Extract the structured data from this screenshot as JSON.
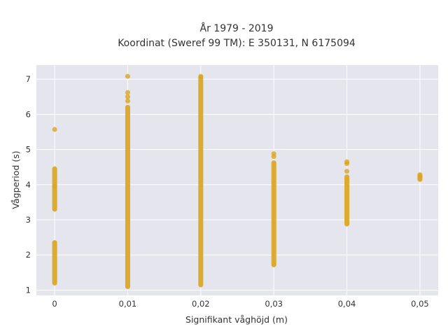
{
  "chart_data": {
    "type": "scatter",
    "title_line1": "År 1979 - 2019",
    "title_line2": "Koordinat (Sweref 99 TM): E 350131, N 6175094",
    "xlabel": "Signifikant våghöjd (m)",
    "ylabel": "Vågperiod (s)",
    "xlim": [
      -0.0025,
      0.0525
    ],
    "ylim": [
      0.85,
      7.4
    ],
    "x_ticks": [
      0,
      0.01,
      0.02,
      0.03,
      0.04,
      0.05
    ],
    "x_tick_labels": [
      "0",
      "0,01",
      "0,02",
      "0,03",
      "0,04",
      "0,05"
    ],
    "y_ticks": [
      1,
      2,
      3,
      4,
      5,
      6,
      7
    ],
    "y_tick_labels": [
      "1",
      "2",
      "3",
      "4",
      "5",
      "6",
      "7"
    ],
    "grid": true,
    "background": "#e5e5ee",
    "marker_color": "#daa520",
    "series": [
      {
        "ranges": [
          {
            "x": 0,
            "y_min": 3.3,
            "y_max": 4.45
          },
          {
            "x": 0,
            "y_min": 1.2,
            "y_max": 2.35
          },
          {
            "x": 0.01,
            "y_min": 1.1,
            "y_max": 6.2
          },
          {
            "x": 0.02,
            "y_min": 1.15,
            "y_max": 7.05
          },
          {
            "x": 0.03,
            "y_min": 1.72,
            "y_max": 4.62
          },
          {
            "x": 0.04,
            "y_min": 2.88,
            "y_max": 4.22
          },
          {
            "x": 0.05,
            "y_min": 4.15,
            "y_max": 4.28
          }
        ],
        "points": [
          {
            "x": 0,
            "y": 5.57
          },
          {
            "x": 0,
            "y": 3.95
          },
          {
            "x": 0.01,
            "y": 7.08
          },
          {
            "x": 0.01,
            "y": 6.62
          },
          {
            "x": 0.01,
            "y": 6.5
          },
          {
            "x": 0.01,
            "y": 6.38
          },
          {
            "x": 0.02,
            "y": 7.08
          },
          {
            "x": 0.03,
            "y": 4.88
          },
          {
            "x": 0.03,
            "y": 4.8
          },
          {
            "x": 0.04,
            "y": 4.65
          },
          {
            "x": 0.04,
            "y": 4.6
          },
          {
            "x": 0.04,
            "y": 4.38
          },
          {
            "x": 0.05,
            "y": 4.22
          }
        ]
      }
    ]
  }
}
